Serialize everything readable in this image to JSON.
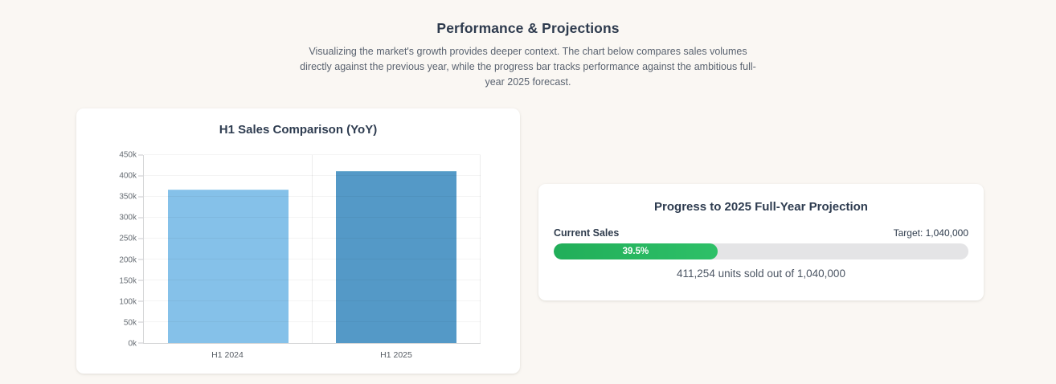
{
  "header": {
    "title": "Performance & Projections",
    "description": "Visualizing the market's growth provides deeper context. The chart below compares sales volumes directly against the previous year, while the progress bar tracks performance against the ambitious full-year 2025 forecast."
  },
  "chart_data": {
    "type": "bar",
    "title": "H1 Sales Comparison (YoY)",
    "categories": [
      "H1 2024",
      "H1 2025"
    ],
    "values": [
      367000,
      411254
    ],
    "bar_colors": [
      "#85c1e9",
      "#5499c7"
    ],
    "bar_border_colors": [
      "#9bcdee",
      "#6faccf"
    ],
    "xlabel": "",
    "ylabel": "",
    "ylim": [
      0,
      450000
    ],
    "ytick_step": 50000,
    "ytick_labels": [
      "0k",
      "50k",
      "100k",
      "150k",
      "200k",
      "250k",
      "300k",
      "350k",
      "400k",
      "450k"
    ],
    "grid": true,
    "legend": false
  },
  "progress_card": {
    "title": "Progress to 2025 Full-Year Projection",
    "current_label": "Current Sales",
    "target_label": "Target: 1,040,000",
    "percent": 39.5,
    "percent_label": "39.5%",
    "summary": "411,254 units sold out of 1,040,000",
    "fill_color": "#2bb863",
    "track_color": "#e4e4e6"
  }
}
